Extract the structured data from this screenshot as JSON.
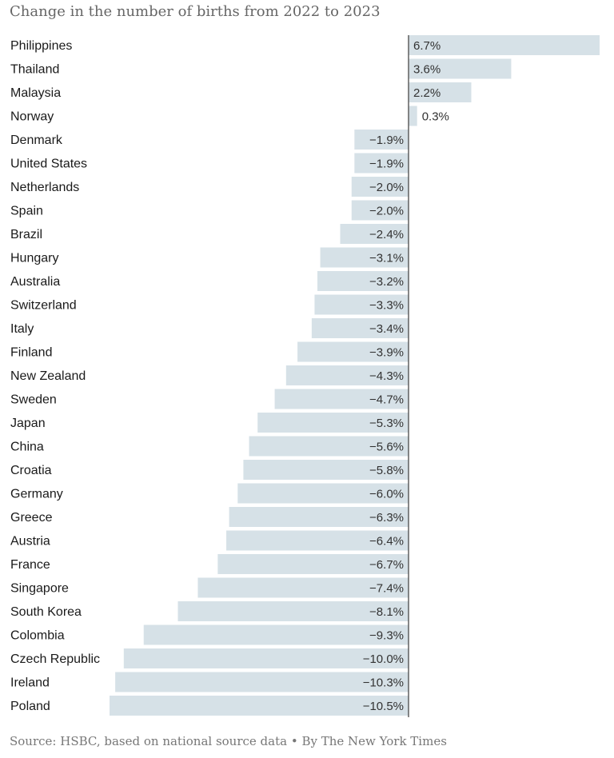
{
  "chart_data": {
    "type": "bar",
    "orientation": "horizontal",
    "title": "Change in the number of births from 2022 to 2023",
    "source": "Source: HSBC, based on national source data • By The New York Times",
    "unit": "%",
    "bar_color": "#d6e1e7",
    "xlim": [
      -10.5,
      6.7
    ],
    "categories": [
      "Philippines",
      "Thailand",
      "Malaysia",
      "Norway",
      "Denmark",
      "United States",
      "Netherlands",
      "Spain",
      "Brazil",
      "Hungary",
      "Australia",
      "Switzerland",
      "Italy",
      "Finland",
      "New Zealand",
      "Sweden",
      "Japan",
      "China",
      "Croatia",
      "Germany",
      "Greece",
      "Austria",
      "France",
      "Singapore",
      "South Korea",
      "Colombia",
      "Czech Republic",
      "Ireland",
      "Poland"
    ],
    "values": [
      6.7,
      3.6,
      2.2,
      0.3,
      -1.9,
      -1.9,
      -2.0,
      -2.0,
      -2.4,
      -3.1,
      -3.2,
      -3.3,
      -3.4,
      -3.9,
      -4.3,
      -4.7,
      -5.3,
      -5.6,
      -5.8,
      -6.0,
      -6.3,
      -6.4,
      -6.7,
      -7.4,
      -8.1,
      -9.3,
      -10.0,
      -10.3,
      -10.5
    ],
    "labels": [
      "6.7%",
      "3.6%",
      "2.2%",
      "0.3%",
      "−1.9%",
      "−1.9%",
      "−2.0%",
      "−2.0%",
      "−2.4%",
      "−3.1%",
      "−3.2%",
      "−3.3%",
      "−3.4%",
      "−3.9%",
      "−4.3%",
      "−4.7%",
      "−5.3%",
      "−5.6%",
      "−5.8%",
      "−6.0%",
      "−6.3%",
      "−6.4%",
      "−6.7%",
      "−7.4%",
      "−8.1%",
      "−9.3%",
      "−10.0%",
      "−10.3%",
      "−10.5%"
    ]
  }
}
